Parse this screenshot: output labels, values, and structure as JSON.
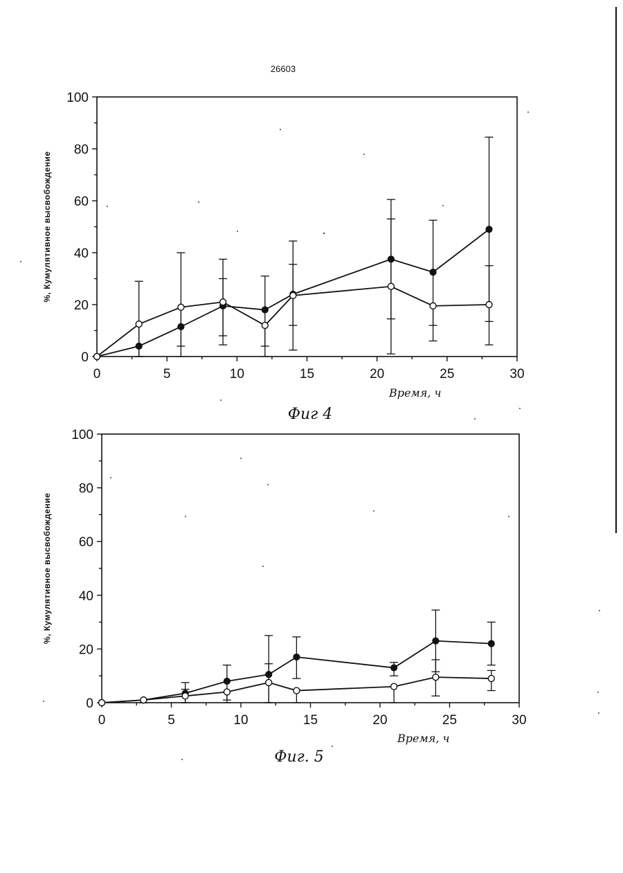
{
  "page_number": "26603",
  "chart_data": [
    {
      "type": "line",
      "caption": "Фиг 4",
      "ylabel": "%, Кумулятивное высвобождение",
      "xlabel": "Время, ч",
      "xlim": [
        0,
        30
      ],
      "ylim": [
        0,
        100
      ],
      "xticks": [
        0,
        5,
        10,
        15,
        20,
        25,
        30
      ],
      "yticks": [
        0,
        20,
        40,
        60,
        80,
        100
      ],
      "grid": false,
      "series": [
        {
          "marker": "filled",
          "x": [
            0,
            3,
            6,
            9,
            12,
            14,
            21,
            24,
            28
          ],
          "y": [
            0,
            4,
            11.5,
            19.5,
            18,
            24,
            37.5,
            32.5,
            49
          ],
          "err_high": [
            0,
            29,
            40,
            37.5,
            31,
            44.5,
            60.5,
            52.5,
            84.5
          ],
          "err_low": [
            0,
            0,
            4,
            8,
            4,
            12,
            14.5,
            12,
            13.5
          ]
        },
        {
          "marker": "open",
          "x": [
            0,
            3,
            6,
            9,
            12,
            14,
            21,
            24,
            28
          ],
          "y": [
            0,
            12.5,
            19,
            21,
            12,
            23.5,
            27,
            19.5,
            20
          ],
          "err_high": [
            0,
            7.5,
            0,
            30,
            0,
            35.5,
            53,
            0,
            35
          ],
          "err_low": [
            0,
            0,
            0,
            4.5,
            0,
            2.5,
            1,
            6,
            4.5
          ]
        }
      ]
    },
    {
      "type": "line",
      "caption": "Фиг. 5",
      "ylabel": "%, Кумулятивное высвобождение",
      "xlabel": "Время, ч",
      "xlim": [
        0,
        30
      ],
      "ylim": [
        0,
        100
      ],
      "xticks": [
        0,
        5,
        10,
        15,
        20,
        25,
        30
      ],
      "yticks": [
        0,
        20,
        40,
        60,
        80,
        100
      ],
      "grid": false,
      "series": [
        {
          "marker": "filled",
          "x": [
            0,
            3,
            6,
            9,
            12,
            14,
            21,
            24,
            28
          ],
          "y": [
            0,
            1,
            3.5,
            8,
            10.5,
            17,
            13,
            23,
            22
          ],
          "err_high": [
            0,
            0,
            7.5,
            14,
            25,
            24.5,
            15,
            34.5,
            30
          ],
          "err_low": [
            0,
            0,
            0,
            1,
            0,
            9,
            10,
            11.5,
            14
          ]
        },
        {
          "marker": "open",
          "x": [
            0,
            3,
            6,
            9,
            12,
            14,
            21,
            24,
            28
          ],
          "y": [
            0,
            1,
            2.5,
            4,
            7.5,
            4.5,
            6,
            9.5,
            9
          ],
          "err_high": [
            0,
            0,
            5,
            0,
            14.5,
            0,
            0,
            16,
            12
          ],
          "err_low": [
            0,
            0,
            0,
            0,
            0,
            0,
            0,
            2.5,
            4.5
          ]
        }
      ]
    }
  ]
}
